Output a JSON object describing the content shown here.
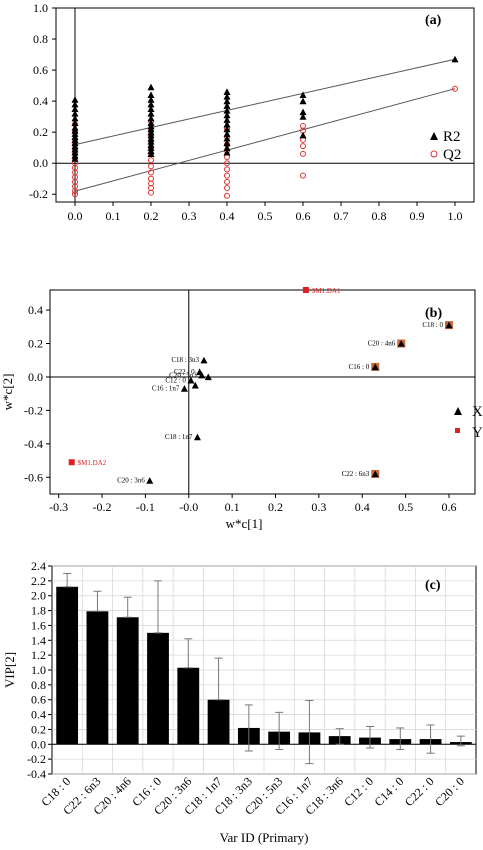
{
  "chart_data": [
    {
      "type": "scatter",
      "panel_label": "(a)",
      "xlim": [
        -0.05,
        1.05
      ],
      "ylim": [
        -0.25,
        1.0
      ],
      "x_ticks": [
        "0.0",
        "0.1",
        "0.2",
        "0.3",
        "0.4",
        "0.5",
        "0.6",
        "0.7",
        "0.8",
        "0.9",
        "1.0"
      ],
      "y_ticks": [
        "-0.2",
        "0.0",
        "0.2",
        "0.4",
        "0.6",
        "0.8",
        "1.0"
      ],
      "legend": [
        "R2",
        "Q2"
      ],
      "series": [
        {
          "name": "R2",
          "color": "#000000",
          "marker": "triangle",
          "points": [
            [
              0,
              0.41
            ],
            [
              0,
              0.38
            ],
            [
              0,
              0.35
            ],
            [
              0,
              0.32
            ],
            [
              0,
              0.29
            ],
            [
              0,
              0.26
            ],
            [
              0,
              0.23
            ],
            [
              0,
              0.21
            ],
            [
              0,
              0.19
            ],
            [
              0,
              0.17
            ],
            [
              0,
              0.15
            ],
            [
              0,
              0.13
            ],
            [
              0,
              0.11
            ],
            [
              0,
              0.09
            ],
            [
              0,
              0.07
            ],
            [
              0,
              0.05
            ],
            [
              0,
              0.03
            ],
            [
              0.2,
              0.49
            ],
            [
              0.2,
              0.44
            ],
            [
              0.2,
              0.41
            ],
            [
              0.2,
              0.38
            ],
            [
              0.2,
              0.35
            ],
            [
              0.2,
              0.32
            ],
            [
              0.2,
              0.29
            ],
            [
              0.2,
              0.26
            ],
            [
              0.2,
              0.24
            ],
            [
              0.2,
              0.22
            ],
            [
              0.2,
              0.2
            ],
            [
              0.2,
              0.18
            ],
            [
              0.2,
              0.16
            ],
            [
              0.2,
              0.14
            ],
            [
              0.2,
              0.12
            ],
            [
              0.2,
              0.1
            ],
            [
              0.2,
              0.08
            ],
            [
              0.2,
              0.06
            ],
            [
              0.4,
              0.46
            ],
            [
              0.4,
              0.43
            ],
            [
              0.4,
              0.4
            ],
            [
              0.4,
              0.37
            ],
            [
              0.4,
              0.34
            ],
            [
              0.4,
              0.31
            ],
            [
              0.4,
              0.28
            ],
            [
              0.4,
              0.25
            ],
            [
              0.4,
              0.22
            ],
            [
              0.4,
              0.19
            ],
            [
              0.4,
              0.16
            ],
            [
              0.4,
              0.13
            ],
            [
              0.4,
              0.1
            ],
            [
              0.4,
              0.07
            ],
            [
              0.6,
              0.44
            ],
            [
              0.6,
              0.4
            ],
            [
              0.6,
              0.33
            ],
            [
              0.6,
              0.3
            ],
            [
              0.6,
              0.18
            ],
            [
              1.0,
              0.67
            ]
          ],
          "regression": [
            [
              0.0,
              0.12
            ],
            [
              1.0,
              0.67
            ]
          ]
        },
        {
          "name": "Q2",
          "color": "#e03030",
          "marker": "circle",
          "points": [
            [
              0,
              0.25
            ],
            [
              0,
              0.2
            ],
            [
              0,
              0.15
            ],
            [
              0,
              0.12
            ],
            [
              0,
              0.09
            ],
            [
              0,
              0.06
            ],
            [
              0,
              0.03
            ],
            [
              0,
              0.0
            ],
            [
              0,
              -0.03
            ],
            [
              0,
              -0.06
            ],
            [
              0,
              -0.09
            ],
            [
              0,
              -0.12
            ],
            [
              0,
              -0.15
            ],
            [
              0,
              -0.18
            ],
            [
              0,
              -0.2
            ],
            [
              0.2,
              0.27
            ],
            [
              0.2,
              0.22
            ],
            [
              0.2,
              0.18
            ],
            [
              0.2,
              0.14
            ],
            [
              0.2,
              0.1
            ],
            [
              0.2,
              0.06
            ],
            [
              0.2,
              0.02
            ],
            [
              0.2,
              -0.02
            ],
            [
              0.2,
              -0.06
            ],
            [
              0.2,
              -0.1
            ],
            [
              0.2,
              -0.13
            ],
            [
              0.2,
              -0.16
            ],
            [
              0.2,
              -0.19
            ],
            [
              0.4,
              0.22
            ],
            [
              0.4,
              0.17
            ],
            [
              0.4,
              0.12
            ],
            [
              0.4,
              0.08
            ],
            [
              0.4,
              0.04
            ],
            [
              0.4,
              0.0
            ],
            [
              0.4,
              -0.04
            ],
            [
              0.4,
              -0.08
            ],
            [
              0.4,
              -0.12
            ],
            [
              0.4,
              -0.16
            ],
            [
              0.4,
              -0.21
            ],
            [
              0.6,
              0.24
            ],
            [
              0.6,
              0.21
            ],
            [
              0.6,
              0.15
            ],
            [
              0.6,
              0.11
            ],
            [
              0.6,
              0.06
            ],
            [
              0.6,
              -0.08
            ],
            [
              1.0,
              0.48
            ]
          ],
          "regression": [
            [
              0.0,
              -0.18
            ],
            [
              1.0,
              0.48
            ]
          ]
        }
      ]
    },
    {
      "type": "scatter",
      "panel_label": "(b)",
      "xlabel": "w*c[1]",
      "ylabel": "w*c[2]",
      "xlim": [
        -0.32,
        0.66
      ],
      "ylim": [
        -0.7,
        0.52
      ],
      "x_ticks": [
        "-0.3",
        "-0.2",
        "-0.1",
        "-0.0",
        "0.1",
        "0.2",
        "0.3",
        "0.4",
        "0.5",
        "0.6"
      ],
      "y_ticks": [
        "-0.6",
        "-0.4",
        "-0.2",
        "0.0",
        "0.2",
        "0.4"
      ],
      "legend": [
        "X",
        "Y"
      ],
      "points": [
        {
          "label": "C18 : 0",
          "x": 0.6,
          "y": 0.31,
          "marker": "triangle",
          "boxed": true
        },
        {
          "label": "C20 : 4n6",
          "x": 0.49,
          "y": 0.2,
          "marker": "triangle",
          "boxed": true
        },
        {
          "label": "C16 : 0",
          "x": 0.43,
          "y": 0.06,
          "marker": "triangle",
          "boxed": true
        },
        {
          "label": "C22 : 6n3",
          "x": 0.43,
          "y": -0.58,
          "marker": "triangle",
          "boxed": true
        },
        {
          "label": "C18 : 3n3",
          "x": 0.035,
          "y": 0.1,
          "marker": "triangle",
          "boxed": false
        },
        {
          "label": "C22 : 0",
          "x": 0.025,
          "y": 0.03,
          "marker": "triangle",
          "boxed": false
        },
        {
          "label": "C20 : 5n3",
          "x": 0.03,
          "y": 0.01,
          "marker": "triangle",
          "boxed": false
        },
        {
          "label": "C12 : 0",
          "x": 0.005,
          "y": -0.02,
          "marker": "triangle",
          "boxed": false
        },
        {
          "label": "C16 : 1n7",
          "x": -0.01,
          "y": -0.07,
          "marker": "triangle",
          "boxed": false
        },
        {
          "label": "C18 : 1n7",
          "x": 0.02,
          "y": -0.36,
          "marker": "triangle",
          "boxed": false
        },
        {
          "label": "C20 : 3n6",
          "x": -0.09,
          "y": -0.62,
          "marker": "triangle",
          "boxed": false
        },
        {
          "label": "",
          "x": 0.045,
          "y": 0.0,
          "marker": "triangle",
          "boxed": false
        },
        {
          "label": "",
          "x": 0.015,
          "y": -0.05,
          "marker": "triangle",
          "boxed": false
        },
        {
          "label": "$M1.DA1",
          "x": 0.27,
          "y": 0.52,
          "marker": "square",
          "boxed": false
        },
        {
          "label": "$M1.DA2",
          "x": -0.27,
          "y": -0.51,
          "marker": "square",
          "boxed": false
        }
      ]
    },
    {
      "type": "bar",
      "panel_label": "(c)",
      "xlabel": "Var ID (Primary)",
      "ylabel": "VIP[2]",
      "ylim": [
        -0.4,
        2.4
      ],
      "y_ticks": [
        "-0.4",
        "-0.2",
        "0.0",
        "0.2",
        "0.4",
        "0.6",
        "0.8",
        "1.0",
        "1.2",
        "1.4",
        "1.6",
        "1.8",
        "2.0",
        "2.2",
        "2.4"
      ],
      "categories": [
        "C18 : 0",
        "C22 : 6n3",
        "C20 : 4n6",
        "C16 : 0",
        "C20 : 3n6",
        "C18 : 1n7",
        "C18 : 3n3",
        "C20 : 5n3",
        "C16 : 1n7",
        "C18 : 3n6",
        "C12 : 0",
        "C14 : 0",
        "C22 : 0",
        "C20 : 0"
      ],
      "values": [
        2.12,
        1.79,
        1.71,
        1.5,
        1.03,
        0.6,
        0.22,
        0.17,
        0.16,
        0.11,
        0.09,
        0.07,
        0.07,
        0.03
      ],
      "error_high": [
        2.3,
        2.06,
        1.98,
        2.2,
        1.42,
        1.16,
        0.53,
        0.43,
        0.59,
        0.21,
        0.24,
        0.22,
        0.26,
        0.11
      ],
      "error_low": [
        2.12,
        1.79,
        1.71,
        1.5,
        1.03,
        0.6,
        -0.09,
        -0.07,
        -0.26,
        0.0,
        -0.05,
        -0.07,
        -0.12,
        -0.02
      ]
    }
  ]
}
